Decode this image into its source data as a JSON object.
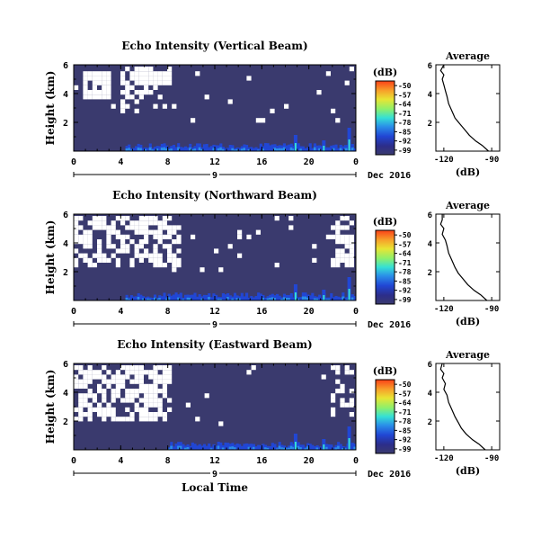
{
  "figure": {
    "xlabel": "Local Time",
    "date_label": "Dec 2016",
    "day_label": "9",
    "colorbar_unit": "(dB)",
    "colorbar_ticks": [
      "-50",
      "-57",
      "-64",
      "-71",
      "-78",
      "-85",
      "-92",
      "-99"
    ],
    "colormap": [
      "#fb4018",
      "#f7a02a",
      "#e8e534",
      "#8ef06a",
      "#35e0d6",
      "#2a8ee8",
      "#2146d4",
      "#2c2d8a",
      "#3a3a6e"
    ]
  },
  "chart_data": [
    {
      "type": "heatmap",
      "title": "Echo Intensity (Vertical Beam)",
      "xlabel": "",
      "ylabel": "Height (km)",
      "xlim": [
        0,
        24
      ],
      "ylim": [
        0,
        6
      ],
      "xticks": [
        "0",
        "4",
        "8",
        "12",
        "16",
        "20",
        "0"
      ],
      "yticks": [
        "6",
        "4",
        "2"
      ],
      "background_db": -99,
      "colorbar": {
        "min": -99,
        "max": -50
      }
    },
    {
      "type": "line",
      "title": "Average",
      "xlabel": "(dB)",
      "ylabel": "",
      "xlim": [
        -125,
        -85
      ],
      "ylim": [
        0,
        6
      ],
      "xticks": [
        "-120",
        "-90"
      ],
      "yticks": [
        "6",
        "4",
        "2"
      ],
      "series": [
        {
          "x": [
            -92,
            -96,
            -100,
            -104,
            -107,
            -110,
            -113,
            -115,
            -117,
            -118,
            -119,
            -120,
            -121,
            -120,
            -122,
            -120
          ],
          "y": [
            0,
            0.4,
            0.7,
            1.1,
            1.5,
            1.9,
            2.3,
            2.8,
            3.3,
            3.8,
            4.2,
            4.6,
            5.0,
            5.3,
            5.6,
            6.0
          ]
        }
      ]
    },
    {
      "type": "heatmap",
      "title": "Echo Intensity (Northward Beam)",
      "xlabel": "",
      "ylabel": "Height (km)",
      "xlim": [
        0,
        24
      ],
      "ylim": [
        0,
        6
      ],
      "xticks": [
        "0",
        "4",
        "8",
        "12",
        "16",
        "20",
        "0"
      ],
      "yticks": [
        "6",
        "4",
        "2"
      ],
      "background_db": -99,
      "colorbar": {
        "min": -99,
        "max": -50
      }
    },
    {
      "type": "line",
      "title": "Average",
      "xlabel": "(dB)",
      "ylabel": "",
      "xlim": [
        -125,
        -85
      ],
      "ylim": [
        0,
        6
      ],
      "xticks": [
        "-120",
        "-90"
      ],
      "yticks": [
        "6",
        "4",
        "2"
      ],
      "series": [
        {
          "x": [
            -93,
            -97,
            -101,
            -105,
            -108,
            -111,
            -113,
            -115,
            -117,
            -118,
            -119,
            -121,
            -120,
            -122,
            -121,
            -121
          ],
          "y": [
            0,
            0.4,
            0.7,
            1.1,
            1.5,
            1.9,
            2.3,
            2.8,
            3.3,
            3.8,
            4.2,
            4.6,
            5.0,
            5.3,
            5.6,
            6.0
          ]
        }
      ]
    },
    {
      "type": "heatmap",
      "title": "Echo Intensity (Eastward Beam)",
      "xlabel": "Local Time",
      "ylabel": "Height (km)",
      "xlim": [
        0,
        24
      ],
      "ylim": [
        0,
        6
      ],
      "xticks": [
        "0",
        "4",
        "8",
        "12",
        "16",
        "20",
        "0"
      ],
      "yticks": [
        "6",
        "4",
        "2"
      ],
      "background_db": -99,
      "colorbar": {
        "min": -99,
        "max": -50
      }
    },
    {
      "type": "line",
      "title": "Average",
      "xlabel": "(dB)",
      "ylabel": "",
      "xlim": [
        -125,
        -85
      ],
      "ylim": [
        0,
        6
      ],
      "xticks": [
        "-120",
        "-90"
      ],
      "yticks": [
        "6",
        "4",
        "2"
      ],
      "series": [
        {
          "x": [
            -94,
            -98,
            -102,
            -106,
            -109,
            -111,
            -113,
            -115,
            -117,
            -118,
            -120,
            -119,
            -121,
            -120,
            -122,
            -121
          ],
          "y": [
            0,
            0.4,
            0.7,
            1.1,
            1.5,
            1.9,
            2.3,
            2.8,
            3.3,
            3.8,
            4.2,
            4.6,
            5.0,
            5.3,
            5.6,
            6.0
          ]
        }
      ]
    }
  ]
}
